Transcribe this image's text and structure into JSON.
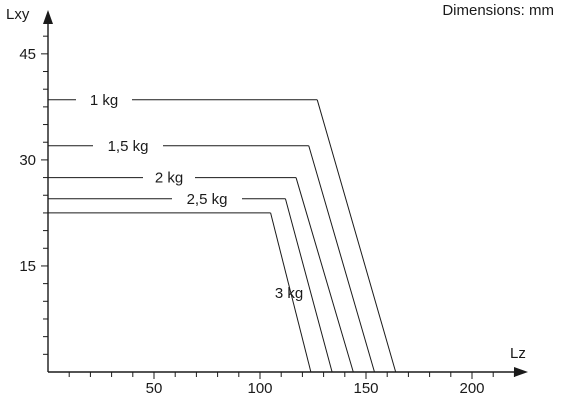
{
  "units_note": "Dimensions: mm",
  "chart_data": {
    "type": "line",
    "xlabel": "Lz",
    "ylabel": "Lxy",
    "x_ticks": [
      50,
      100,
      150,
      200
    ],
    "y_ticks": [
      15,
      30,
      45
    ],
    "xlim": [
      0,
      220
    ],
    "ylim": [
      0,
      50
    ],
    "grid": false,
    "series": [
      {
        "name": "1 kg",
        "x": [
          0,
          127,
          164
        ],
        "y": [
          38.5,
          38.5,
          0
        ]
      },
      {
        "name": "1,5 kg",
        "x": [
          0,
          123,
          154
        ],
        "y": [
          32,
          32,
          0
        ]
      },
      {
        "name": "2 kg",
        "x": [
          0,
          117,
          144
        ],
        "y": [
          27.5,
          27.5,
          0
        ]
      },
      {
        "name": "2,5 kg",
        "x": [
          0,
          112,
          134
        ],
        "y": [
          24.5,
          24.5,
          0
        ]
      },
      {
        "name": "3 kg",
        "x": [
          0,
          105,
          124
        ],
        "y": [
          22.5,
          22.5,
          0
        ]
      }
    ]
  }
}
